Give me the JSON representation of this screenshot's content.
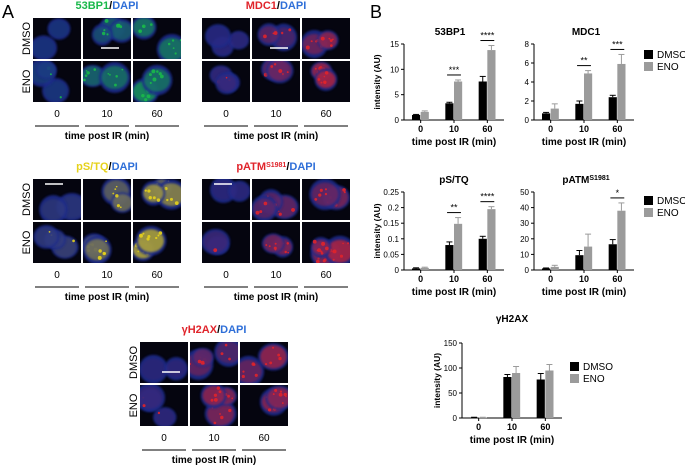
{
  "panel_labels": {
    "a": "A",
    "b": "B"
  },
  "colors": {
    "dapi": "#2f6fd8",
    "dmso": "#000000",
    "eno": "#9b9b9b",
    "green": "#19b84a",
    "red": "#e0242b",
    "yellow": "#e6d21c"
  },
  "micrographs": [
    {
      "id": "m53bp1",
      "marker": "53BP1",
      "marker_sup": "",
      "marker_color": "#19b84a",
      "sep": "/",
      "dapi": "DAPI",
      "rows": [
        "DMSO",
        "ENO"
      ],
      "times": [
        "0",
        "10",
        "60"
      ],
      "xlabel": "time post IR (min)"
    },
    {
      "id": "mmdc1",
      "marker": "MDC1",
      "marker_sup": "",
      "marker_color": "#e0242b",
      "sep": "/",
      "dapi": "DAPI",
      "rows": [],
      "times": [
        "0",
        "10",
        "60"
      ],
      "xlabel": "time post IR (min)"
    },
    {
      "id": "mpstq",
      "marker": "pS/TQ",
      "marker_sup": "",
      "marker_color": "#e6d21c",
      "sep": "/",
      "dapi": "DAPI",
      "rows": [
        "DMSO",
        "ENO"
      ],
      "times": [
        "0",
        "10",
        "60"
      ],
      "xlabel": "time post IR (min)"
    },
    {
      "id": "mpatm",
      "marker": "pATM",
      "marker_sup": "S1981",
      "marker_color": "#e0242b",
      "sep": "/",
      "dapi": "DAPI",
      "rows": [],
      "times": [
        "0",
        "10",
        "60"
      ],
      "xlabel": "time post IR (min)"
    },
    {
      "id": "mh2ax",
      "marker": "γH2AX",
      "marker_sup": "",
      "marker_color": "#e0242b",
      "sep": "/",
      "dapi": "DAPI",
      "rows": [
        "DMSO",
        "ENO"
      ],
      "times": [
        "0",
        "10",
        "60"
      ],
      "xlabel": "time post IR (min)"
    }
  ],
  "legend": [
    "DMSO",
    "ENO"
  ],
  "chart_data": [
    {
      "type": "bar",
      "title": "53BP1",
      "title_sup": "",
      "categories": [
        "0",
        "10",
        "60"
      ],
      "xlabel": "time post IR (min)",
      "ylabel": "intensity (AU)",
      "ylim": [
        0,
        15
      ],
      "yticks": [
        0,
        5,
        10,
        15
      ],
      "series": [
        {
          "name": "DMSO",
          "values": [
            1.0,
            3.3,
            7.6
          ],
          "errors": [
            0.1,
            0.2,
            1.0
          ]
        },
        {
          "name": "ENO",
          "values": [
            1.6,
            7.6,
            13.8
          ],
          "errors": [
            0.2,
            0.3,
            0.9
          ]
        }
      ],
      "significance": [
        {
          "category": "10",
          "label": "***"
        },
        {
          "category": "60",
          "label": "****"
        }
      ]
    },
    {
      "type": "bar",
      "title": "MDC1",
      "title_sup": "",
      "categories": [
        "0",
        "10",
        "60"
      ],
      "xlabel": "time post IR (min)",
      "ylabel": "",
      "ylim": [
        0,
        8
      ],
      "yticks": [
        0,
        2,
        4,
        6,
        8
      ],
      "series": [
        {
          "name": "DMSO",
          "values": [
            0.7,
            1.7,
            2.4
          ],
          "errors": [
            0.1,
            0.3,
            0.2
          ]
        },
        {
          "name": "ENO",
          "values": [
            1.2,
            4.9,
            5.9
          ],
          "errors": [
            0.5,
            0.3,
            1.0
          ]
        }
      ],
      "significance": [
        {
          "category": "10",
          "label": "**"
        },
        {
          "category": "60",
          "label": "***"
        }
      ]
    },
    {
      "type": "bar",
      "title": "pS/TQ",
      "title_sup": "",
      "categories": [
        "0",
        "10",
        "60"
      ],
      "xlabel": "time post IR (min)",
      "ylabel": "intensity (AU)",
      "ylim": [
        0,
        0.25
      ],
      "yticks": [
        0,
        0.05,
        0.1,
        0.15,
        0.2,
        0.25
      ],
      "series": [
        {
          "name": "DMSO",
          "values": [
            0.005,
            0.08,
            0.1
          ],
          "errors": [
            0.002,
            0.01,
            0.008
          ]
        },
        {
          "name": "ENO",
          "values": [
            0.007,
            0.148,
            0.195
          ],
          "errors": [
            0.002,
            0.02,
            0.008
          ]
        }
      ],
      "significance": [
        {
          "category": "10",
          "label": "**"
        },
        {
          "category": "60",
          "label": "****"
        }
      ]
    },
    {
      "type": "bar",
      "title": "pATM",
      "title_sup": "S1981",
      "categories": [
        "0",
        "10",
        "60"
      ],
      "xlabel": "time post IR (min)",
      "ylabel": "",
      "ylim": [
        0,
        50
      ],
      "yticks": [
        0,
        10,
        20,
        30,
        40,
        50
      ],
      "series": [
        {
          "name": "DMSO",
          "values": [
            1.0,
            9.5,
            16.5
          ],
          "errors": [
            0.3,
            3.0,
            3.0
          ]
        },
        {
          "name": "ENO",
          "values": [
            2.0,
            15.0,
            38.0
          ],
          "errors": [
            1.0,
            8.0,
            5.0
          ]
        }
      ],
      "significance": [
        {
          "category": "60",
          "label": "*"
        }
      ]
    },
    {
      "type": "bar",
      "title": "γH2AX",
      "title_sup": "",
      "categories": [
        "0",
        "10",
        "60"
      ],
      "xlabel": "time post IR (min)",
      "ylabel": "intensity (AU)",
      "ylim": [
        0,
        150
      ],
      "yticks": [
        0,
        50,
        100,
        150
      ],
      "series": [
        {
          "name": "DMSO",
          "values": [
            1,
            82,
            77
          ],
          "errors": [
            0.5,
            5,
            12
          ]
        },
        {
          "name": "ENO",
          "values": [
            1,
            90,
            95
          ],
          "errors": [
            0.5,
            13,
            12
          ]
        }
      ],
      "significance": []
    }
  ]
}
